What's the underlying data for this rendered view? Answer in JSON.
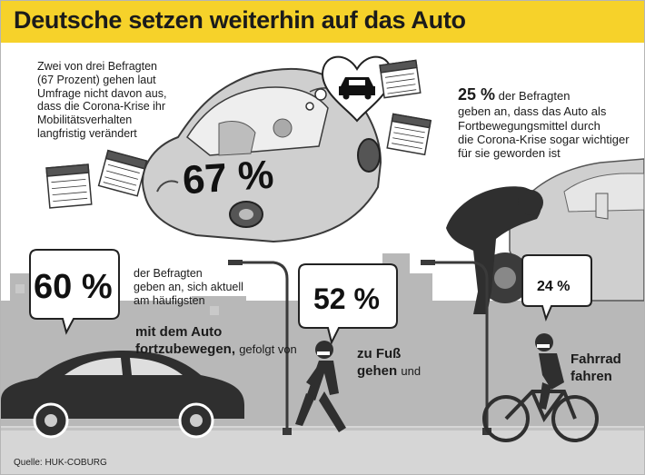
{
  "header": {
    "title": "Deutsche setzen weiterhin auf das Auto"
  },
  "stat67": {
    "value": "67 %",
    "lines": [
      "Zwei von drei Befragten",
      "(67 Prozent) gehen laut",
      "Umfrage nicht davon aus,",
      "dass die Corona-Krise ihr",
      "Mobilitätsverhalten",
      "langfristig verändert"
    ]
  },
  "stat25": {
    "value": "25 %",
    "lines": [
      "der Befragten",
      "geben an, dass das Auto als",
      "Fortbewegungsmittel durch",
      "die Corona-Krise sogar wichtiger",
      "für sie geworden ist"
    ]
  },
  "stat60": {
    "value": "60 %",
    "lines": [
      "der Befragten",
      "geben an, sich aktuell",
      "am häufigsten"
    ],
    "mode_line1": "mit dem Auto",
    "mode_line2": "fortzubewegen,",
    "suffix": "gefolgt von"
  },
  "stat52": {
    "value": "52 %",
    "mode_line1": "zu Fuß",
    "mode_line2": "gehen",
    "suffix": "und"
  },
  "stat24": {
    "value": "24 %",
    "mode_line1": "Fahrrad",
    "mode_line2": "fahren"
  },
  "source": "Quelle: HUK-COBURG",
  "colors": {
    "header": "#f6d22a",
    "car": "#c9c9c9",
    "city": "#a9a9a9",
    "dark": "#2f2f2f",
    "ground": "#cfcfcf"
  },
  "icons": [
    "heart-icon",
    "calendar-icon",
    "car-icon",
    "speech-bubble-icon",
    "street-lamp-icon",
    "pedestrian-icon",
    "cyclist-icon",
    "person-icon"
  ]
}
